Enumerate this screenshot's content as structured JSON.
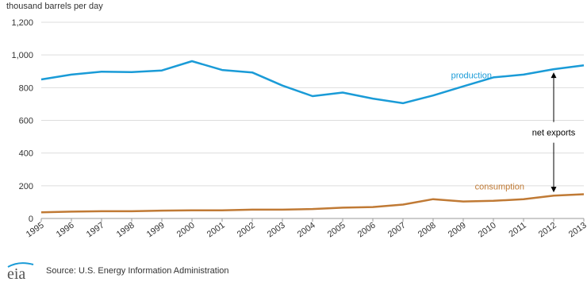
{
  "chart_data": {
    "type": "line",
    "ylabel": "thousand barrels per day",
    "ylim": [
      0,
      1200
    ],
    "yticks": [
      0,
      200,
      400,
      600,
      800,
      1000,
      1200
    ],
    "ytick_labels": [
      "0",
      "200",
      "400",
      "600",
      "800",
      "1,000",
      "1,200"
    ],
    "grid": true,
    "x": [
      "1995",
      "1996",
      "1997",
      "1998",
      "1999",
      "2000",
      "2001",
      "2002",
      "2003",
      "2004",
      "2005",
      "2006",
      "2007",
      "2008",
      "2009",
      "2010",
      "2011",
      "2012",
      "2013"
    ],
    "series": [
      {
        "name": "production",
        "color": "#1a9bd7",
        "values": [
          850,
          880,
          898,
          895,
          905,
          962,
          908,
          893,
          813,
          748,
          770,
          733,
          705,
          752,
          808,
          863,
          880,
          913,
          936
        ]
      },
      {
        "name": "consumption",
        "color": "#c07a35",
        "values": [
          38,
          42,
          44,
          44,
          48,
          50,
          50,
          54,
          54,
          58,
          66,
          70,
          85,
          118,
          104,
          108,
          118,
          140,
          148
        ]
      }
    ],
    "annotation": "net exports"
  },
  "source": {
    "text": "Source: U.S. Energy Information Administration",
    "logo_text": "eia"
  }
}
